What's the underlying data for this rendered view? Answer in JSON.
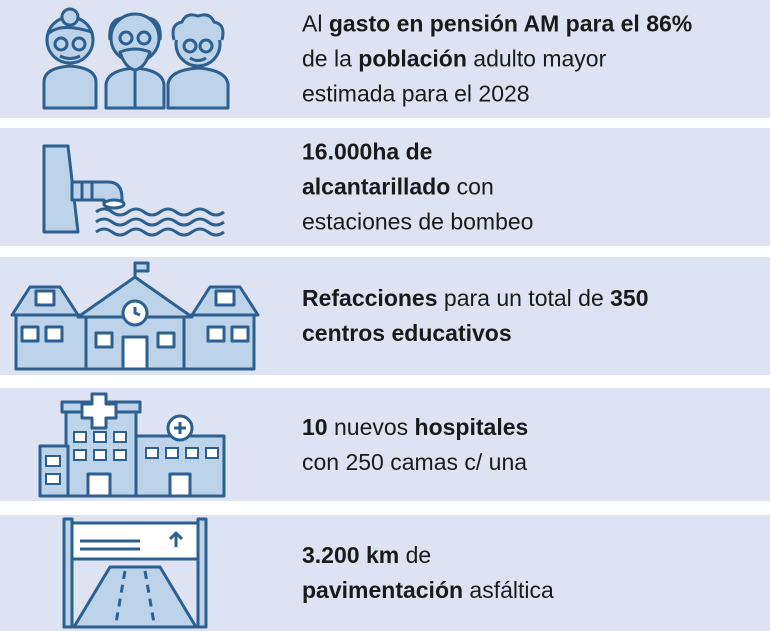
{
  "items": [
    {
      "icon": "elderly-people-icon",
      "lines": [
        [
          {
            "t": "Al ",
            "b": false
          },
          {
            "t": "gasto en pensión AM para el 86%",
            "b": true
          }
        ],
        [
          {
            "t": "de la ",
            "b": false
          },
          {
            "t": "población",
            "b": true
          },
          {
            "t": " adulto mayor",
            "b": false
          }
        ],
        [
          {
            "t": "estimada para el 2028",
            "b": false
          }
        ]
      ]
    },
    {
      "icon": "sewer-pipe-icon",
      "lines": [
        [
          {
            "t": "16.000ha de",
            "b": true
          }
        ],
        [
          {
            "t": "alcantarillado",
            "b": true
          },
          {
            "t": " con",
            "b": false
          }
        ],
        [
          {
            "t": "estaciones de bombeo",
            "b": false
          }
        ]
      ]
    },
    {
      "icon": "school-buildings-icon",
      "lines": [
        [
          {
            "t": "Refacciones",
            "b": true
          },
          {
            "t": " para un total de ",
            "b": false
          },
          {
            "t": "350",
            "b": true
          }
        ],
        [
          {
            "t": "centros educativos",
            "b": true
          }
        ]
      ]
    },
    {
      "icon": "hospital-buildings-icon",
      "lines": [
        [
          {
            "t": "10",
            "b": true
          },
          {
            "t": " nuevos ",
            "b": false
          },
          {
            "t": "hospitales",
            "b": true
          }
        ],
        [
          {
            "t": "con 250 camas c/ una",
            "b": false
          }
        ]
      ]
    },
    {
      "icon": "highway-road-icon",
      "lines": [
        [
          {
            "t": "3.200 km",
            "b": true
          },
          {
            "t": " de",
            "b": false
          }
        ],
        [
          {
            "t": "pavimentación",
            "b": true
          },
          {
            "t": " asfáltica",
            "b": false
          }
        ]
      ]
    }
  ],
  "colors": {
    "background": "#ffffff",
    "row_background": "#dde3f3",
    "icon_stroke": "#2d5f8f",
    "icon_fill": "#bcd3ea",
    "text": "#1a1a1a"
  }
}
